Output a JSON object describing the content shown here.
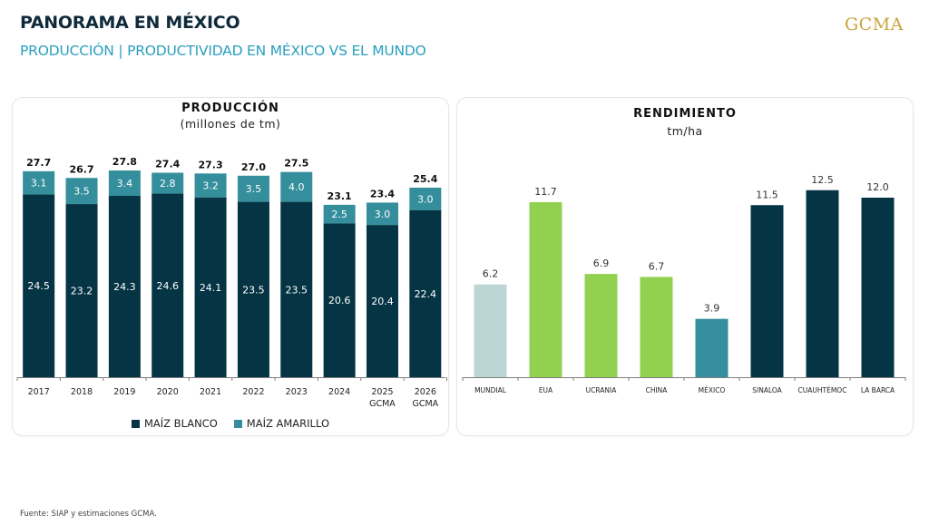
{
  "header": {
    "title": "PANORAMA EN MÉXICO",
    "subtitle": "PRODUCCIÓN | PRODUCTIVIDAD EN MÉXICO VS EL MUNDO",
    "logo": "GCMA"
  },
  "footer": {
    "source": "Fuente: SIAP y estimaciones GCMA."
  },
  "colors": {
    "maiz_blanco": "#053444",
    "maiz_amarillo": "#348e9b",
    "mundial": "#bcd6d6",
    "international": "#92d050",
    "mexico": "#348e9b",
    "mexican_regions": "#053444",
    "title": "#0f2a3a",
    "subtitle": "#2a9fbe",
    "logo": "#c9a43a"
  },
  "chart_data": [
    {
      "type": "bar",
      "stacked": true,
      "title": "PRODUCCIÓN",
      "subtitle": "(millones de tm)",
      "xlabel": "",
      "ylabel": "",
      "ylim": [
        0,
        28
      ],
      "grid": false,
      "legend_position": "bottom",
      "categories": [
        "2017",
        "2018",
        "2019",
        "2020",
        "2021",
        "2022",
        "2023",
        "2024",
        "2025\nGCMA",
        "2026\nGCMA"
      ],
      "category_lines": [
        [
          "2017"
        ],
        [
          "2018"
        ],
        [
          "2019"
        ],
        [
          "2020"
        ],
        [
          "2021"
        ],
        [
          "2022"
        ],
        [
          "2023"
        ],
        [
          "2024"
        ],
        [
          "2025",
          "GCMA"
        ],
        [
          "2026",
          "GCMA"
        ]
      ],
      "series": [
        {
          "name": "MAÍZ BLANCO",
          "color_key": "maiz_blanco",
          "values": [
            24.5,
            23.2,
            24.3,
            24.6,
            24.1,
            23.5,
            23.5,
            20.6,
            20.4,
            22.4
          ]
        },
        {
          "name": "MAÍZ AMARILLO",
          "color_key": "maiz_amarillo",
          "values": [
            3.1,
            3.5,
            3.4,
            2.8,
            3.2,
            3.5,
            4.0,
            2.5,
            3.0,
            3.0
          ]
        }
      ],
      "totals": [
        "27.7",
        "26.7",
        "27.8",
        "27.4",
        "27.3",
        "27.0",
        "27.5",
        "23.1",
        "23.4",
        "25.4"
      ],
      "value_labels_blanco": [
        "24.5",
        "23.2",
        "24.3",
        "24.6",
        "24.1",
        "23.5",
        "23.5",
        "20.6",
        "20.4",
        "22.4"
      ],
      "value_labels_amarillo": [
        "3.1",
        "3.5",
        "3.4",
        "2.8",
        "3.2",
        "3.5",
        "4.0",
        "2.5",
        "3.0",
        "3.0"
      ]
    },
    {
      "type": "bar",
      "title": "RENDIMIENTO",
      "subtitle": "tm/ha",
      "xlabel": "",
      "ylabel": "",
      "ylim": [
        0,
        12.5
      ],
      "grid": false,
      "categories": [
        "MUNDIAL",
        "EUA",
        "UCRANIA",
        "CHINA",
        "MÉXICO",
        "SINALOA",
        "CUAUHTÉMOC",
        "LA BARCA"
      ],
      "values": [
        6.2,
        11.7,
        6.9,
        6.7,
        3.9,
        11.5,
        12.5,
        12.0
      ],
      "value_labels": [
        "6.2",
        "11.7",
        "6.9",
        "6.7",
        "3.9",
        "11.5",
        "12.5",
        "12.0"
      ],
      "color_keys": [
        "mundial",
        "international",
        "international",
        "international",
        "mexico",
        "mexican_regions",
        "mexican_regions",
        "mexican_regions"
      ]
    }
  ]
}
